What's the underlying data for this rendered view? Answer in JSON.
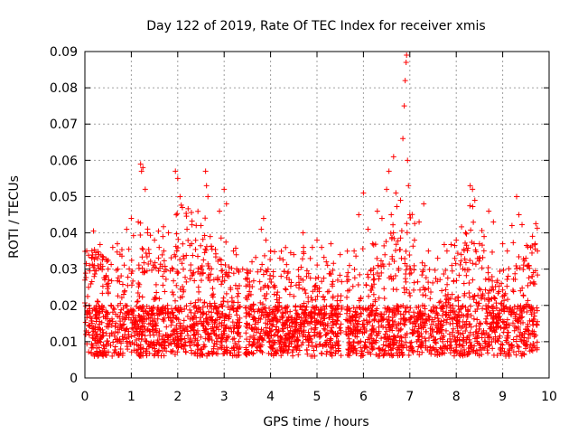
{
  "chart_data": {
    "type": "scatter",
    "title": "Day 122 of 2019, Rate Of TEC Index for receiver xmis",
    "xlabel": "GPS time / hours",
    "ylabel": "ROTI / TECUs",
    "xlim": [
      0,
      10
    ],
    "ylim": [
      0,
      0.09
    ],
    "x_ticks": [
      "0",
      "1",
      "2",
      "3",
      "4",
      "5",
      "6",
      "7",
      "8",
      "9",
      "10"
    ],
    "y_ticks": [
      "0",
      "0.01",
      "0.02",
      "0.03",
      "0.04",
      "0.05",
      "0.06",
      "0.07",
      "0.08",
      "0.09"
    ],
    "grid": true,
    "marker": "plus",
    "series_color": "#ff0000",
    "density_note": "thousands of points spanning 0-9.75 h, baseline 0.005-0.035 TECU",
    "series": [
      {
        "name": "ROTI",
        "points": [
          [
            0.02,
            0.012
          ],
          [
            0.05,
            0.018
          ],
          [
            0.08,
            0.025
          ],
          [
            0.1,
            0.031
          ],
          [
            0.15,
            0.033
          ],
          [
            0.2,
            0.028
          ],
          [
            0.3,
            0.034
          ],
          [
            0.5,
            0.03
          ],
          [
            0.6,
            0.036
          ],
          [
            0.7,
            0.037
          ],
          [
            0.9,
            0.041
          ],
          [
            1.0,
            0.044
          ],
          [
            1.15,
            0.043
          ],
          [
            1.2,
            0.059
          ],
          [
            1.22,
            0.057
          ],
          [
            1.25,
            0.058
          ],
          [
            1.3,
            0.052
          ],
          [
            1.35,
            0.04
          ],
          [
            1.5,
            0.038
          ],
          [
            1.6,
            0.036
          ],
          [
            1.7,
            0.035
          ],
          [
            1.8,
            0.04
          ],
          [
            1.95,
            0.057
          ],
          [
            2.0,
            0.055
          ],
          [
            2.05,
            0.05
          ],
          [
            2.1,
            0.047
          ],
          [
            2.2,
            0.041
          ],
          [
            2.3,
            0.037
          ],
          [
            2.5,
            0.042
          ],
          [
            2.6,
            0.057
          ],
          [
            2.62,
            0.053
          ],
          [
            2.65,
            0.05
          ],
          [
            2.7,
            0.039
          ],
          [
            2.9,
            0.046
          ],
          [
            3.0,
            0.052
          ],
          [
            3.05,
            0.048
          ],
          [
            3.2,
            0.035
          ],
          [
            3.4,
            0.03
          ],
          [
            3.6,
            0.032
          ],
          [
            3.8,
            0.041
          ],
          [
            3.85,
            0.044
          ],
          [
            3.9,
            0.038
          ],
          [
            4.0,
            0.035
          ],
          [
            4.2,
            0.033
          ],
          [
            4.5,
            0.034
          ],
          [
            4.7,
            0.04
          ],
          [
            4.9,
            0.036
          ],
          [
            5.0,
            0.038
          ],
          [
            5.1,
            0.036
          ],
          [
            5.2,
            0.032
          ],
          [
            5.3,
            0.037
          ],
          [
            5.5,
            0.034
          ],
          [
            5.7,
            0.031
          ],
          [
            5.8,
            0.035
          ],
          [
            5.9,
            0.045
          ],
          [
            6.0,
            0.051
          ],
          [
            6.1,
            0.041
          ],
          [
            6.2,
            0.037
          ],
          [
            6.3,
            0.046
          ],
          [
            6.4,
            0.044
          ],
          [
            6.5,
            0.052
          ],
          [
            6.55,
            0.057
          ],
          [
            6.6,
            0.045
          ],
          [
            6.65,
            0.061
          ],
          [
            6.7,
            0.051
          ],
          [
            6.8,
            0.049
          ],
          [
            6.85,
            0.066
          ],
          [
            6.88,
            0.075
          ],
          [
            6.9,
            0.082
          ],
          [
            6.92,
            0.087
          ],
          [
            6.93,
            0.089
          ],
          [
            6.95,
            0.06
          ],
          [
            6.97,
            0.053
          ],
          [
            7.0,
            0.045
          ],
          [
            7.1,
            0.038
          ],
          [
            7.2,
            0.043
          ],
          [
            7.3,
            0.048
          ],
          [
            7.4,
            0.035
          ],
          [
            7.6,
            0.033
          ],
          [
            7.8,
            0.035
          ],
          [
            8.0,
            0.038
          ],
          [
            8.2,
            0.04
          ],
          [
            8.3,
            0.053
          ],
          [
            8.35,
            0.052
          ],
          [
            8.4,
            0.049
          ],
          [
            8.5,
            0.037
          ],
          [
            8.6,
            0.039
          ],
          [
            8.7,
            0.046
          ],
          [
            8.8,
            0.043
          ],
          [
            9.0,
            0.037
          ],
          [
            9.1,
            0.035
          ],
          [
            9.2,
            0.042
          ],
          [
            9.3,
            0.05
          ],
          [
            9.35,
            0.045
          ],
          [
            9.5,
            0.033
          ],
          [
            9.6,
            0.036
          ],
          [
            9.7,
            0.037
          ],
          [
            9.75,
            0.035
          ]
        ]
      }
    ]
  }
}
